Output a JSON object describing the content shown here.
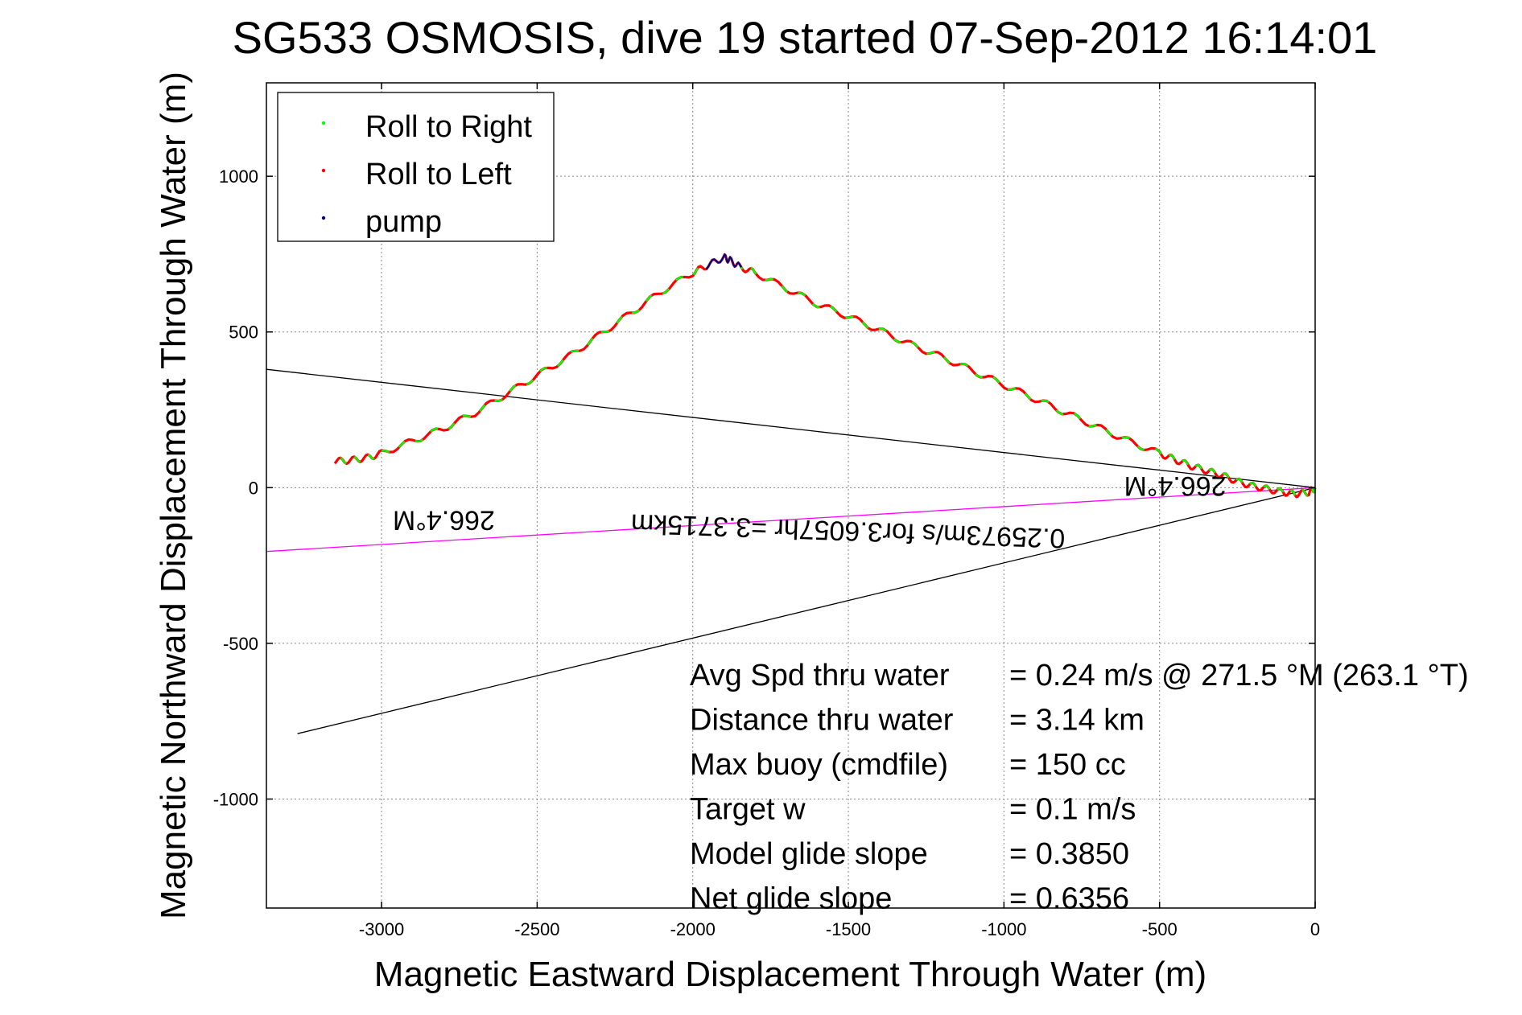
{
  "chart_data": {
    "type": "line",
    "title": "SG533 OSMOSIS, dive 19 started 07-Sep-2012 16:14:01",
    "xlabel": "Magnetic Eastward Displacement Through Water (m)",
    "ylabel": "Magnetic Northward Displacement Through Water (m)",
    "xlim": [
      -3370,
      0
    ],
    "ylim": [
      -1350,
      1300
    ],
    "xticks": [
      -3000,
      -2500,
      -2000,
      -1500,
      -1000,
      -500,
      0
    ],
    "yticks": [
      -1000,
      -500,
      0,
      500,
      1000
    ],
    "grid": true,
    "legend": {
      "position": "top-left",
      "entries": [
        {
          "label": "Roll to Right",
          "color": "#00ff00"
        },
        {
          "label": "Roll to Left",
          "color": "#ff0000"
        },
        {
          "label": "pump",
          "color": "#000080"
        }
      ]
    },
    "track": {
      "x": [
        0,
        -20,
        -60,
        -100,
        -150,
        -200,
        -250,
        -300,
        -350,
        -400,
        -450,
        -500,
        -600,
        -700,
        -800,
        -900,
        -1000,
        -1100,
        -1200,
        -1300,
        -1400,
        -1500,
        -1600,
        -1700,
        -1800,
        -1850,
        -1880,
        -1900,
        -1950,
        -2000,
        -2100,
        -2200,
        -2300,
        -2400,
        -2500,
        -2600,
        -2700,
        -2800,
        -2900,
        -3000,
        -3050,
        -3100,
        -3150
      ],
      "y": [
        0,
        -15,
        -20,
        -15,
        -5,
        5,
        20,
        40,
        55,
        70,
        90,
        110,
        150,
        195,
        240,
        285,
        330,
        375,
        420,
        460,
        505,
        550,
        590,
        640,
        690,
        710,
        730,
        740,
        715,
        690,
        630,
        560,
        490,
        420,
        360,
        300,
        240,
        190,
        150,
        110,
        95,
        88,
        85
      ],
      "color_right": "#00ff00",
      "color_left": "#ff0000",
      "color_pump": "#000080"
    },
    "reference_lines": [
      {
        "name": "upper-heading-line",
        "color": "#000000",
        "points": [
          [
            -3370,
            380
          ],
          [
            0,
            0
          ]
        ]
      },
      {
        "name": "lower-heading-line",
        "color": "#000000",
        "points": [
          [
            -3270,
            -790
          ],
          [
            0,
            0
          ]
        ]
      },
      {
        "name": "average-line",
        "color": "#ff00ff",
        "points": [
          [
            -3370,
            -205
          ],
          [
            0,
            0
          ]
        ]
      }
    ],
    "annotations": [
      {
        "text": "266.4°M",
        "x": -2800,
        "y": -75,
        "rotate": 180
      },
      {
        "text": "266.4°M",
        "x": -450,
        "y": 35,
        "rotate": 180
      },
      {
        "text": "0.25973m/s for3.6057hr =3.3715km",
        "x": -1500,
        "y": -110,
        "rotate": 182
      }
    ],
    "stats": [
      {
        "label": "Avg Spd thru water",
        "value": "=  0.24 m/s @ 271.5 °M (263.1 °T)"
      },
      {
        "label": "Distance thru water",
        "value": "=  3.14 km"
      },
      {
        "label": "Max buoy (cmdfile)",
        "value": "= 150 cc"
      },
      {
        "label": "Target w",
        "value": "= 0.1 m/s"
      },
      {
        "label": "Model glide slope",
        "value": "= 0.3850"
      },
      {
        "label": "Net glide slope",
        "value": "= 0.6356"
      }
    ]
  }
}
